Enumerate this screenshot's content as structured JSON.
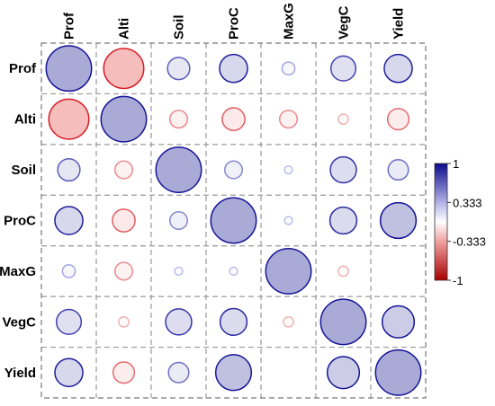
{
  "chart_data": {
    "type": "heatmap",
    "variables": [
      "Prof",
      "Alti",
      "Soil",
      "ProC",
      "MaxG",
      "VegC",
      "Yield"
    ],
    "matrix": [
      [
        1.0,
        -0.78,
        0.24,
        0.38,
        0.08,
        0.3,
        0.38
      ],
      [
        -0.78,
        1.0,
        -0.15,
        -0.25,
        -0.15,
        -0.05,
        -0.22
      ],
      [
        0.24,
        -0.15,
        1.0,
        0.15,
        0.03,
        0.33,
        0.2
      ],
      [
        0.38,
        -0.25,
        0.15,
        1.0,
        0.03,
        0.35,
        0.62
      ],
      [
        0.08,
        -0.15,
        0.03,
        0.03,
        1.0,
        -0.05,
        0.0
      ],
      [
        0.3,
        -0.05,
        0.33,
        0.35,
        -0.05,
        1.0,
        0.5
      ],
      [
        0.38,
        -0.22,
        0.2,
        0.62,
        0.0,
        0.5,
        1.0
      ]
    ],
    "colorbar": {
      "ticks": [
        "1",
        "0.333",
        "-0.333",
        "-1"
      ],
      "range": [
        -1,
        1
      ],
      "colors": {
        "negative": "#b2182b",
        "neutral": "#ffffff",
        "positive": "#1a1aa6"
      }
    },
    "grid": "dashed"
  }
}
